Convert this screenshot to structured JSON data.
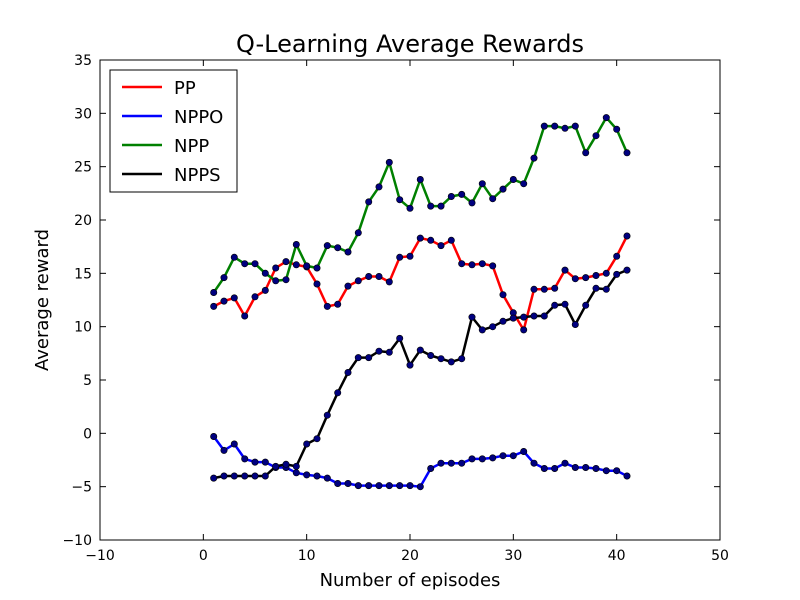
{
  "chart_data": {
    "type": "line",
    "title": "Q-Learning Average Rewards",
    "xlabel": "Number of episodes",
    "ylabel": "Average reward",
    "xlim": [
      -10,
      50
    ],
    "ylim": [
      -10,
      35
    ],
    "xticks": [
      "−10",
      "0",
      "10",
      "20",
      "30",
      "40",
      "50"
    ],
    "yticks": [
      "−10",
      "−5",
      "0",
      "5",
      "10",
      "15",
      "20",
      "25",
      "30",
      "35"
    ],
    "grid": false,
    "legend_position": "top-left",
    "marker_color": "#00007f",
    "x": [
      1,
      2,
      3,
      4,
      5,
      6,
      7,
      8,
      9,
      10,
      11,
      12,
      13,
      14,
      15,
      16,
      17,
      18,
      19,
      20,
      21,
      22,
      23,
      24,
      25,
      26,
      27,
      28,
      29,
      30,
      31,
      32,
      33,
      34,
      35,
      36,
      37,
      38,
      39,
      40,
      41
    ],
    "series": [
      {
        "name": "PP",
        "color": "#ff0000",
        "values": [
          11.9,
          12.4,
          12.7,
          11.0,
          12.8,
          13.4,
          15.5,
          16.1,
          15.8,
          15.6,
          14.0,
          11.9,
          12.1,
          13.8,
          14.3,
          14.7,
          14.7,
          14.2,
          16.5,
          16.6,
          18.3,
          18.1,
          17.6,
          18.1,
          15.9,
          15.8,
          15.9,
          15.7,
          13.0,
          11.3,
          9.7,
          13.5,
          13.5,
          13.6,
          15.3,
          14.5,
          14.6,
          14.8,
          15.0,
          16.6,
          18.5
        ]
      },
      {
        "name": "NPPO",
        "color": "#0000ff",
        "values": [
          -0.3,
          -1.6,
          -1.0,
          -2.4,
          -2.7,
          -2.7,
          -3.2,
          -3.2,
          -3.7,
          -3.9,
          -4.0,
          -4.2,
          -4.7,
          -4.7,
          -4.9,
          -4.9,
          -4.9,
          -4.9,
          -4.9,
          -4.9,
          -5.0,
          -3.3,
          -2.8,
          -2.8,
          -2.8,
          -2.4,
          -2.4,
          -2.3,
          -2.1,
          -2.1,
          -1.7,
          -2.8,
          -3.3,
          -3.3,
          -2.8,
          -3.2,
          -3.2,
          -3.3,
          -3.5,
          -3.5,
          -4.0
        ]
      },
      {
        "name": "NPP",
        "color": "#008000",
        "values": [
          13.2,
          14.6,
          16.5,
          15.9,
          15.9,
          15.0,
          14.3,
          14.4,
          17.7,
          15.7,
          15.5,
          17.6,
          17.4,
          17.0,
          18.8,
          21.7,
          23.1,
          25.4,
          21.9,
          21.1,
          23.8,
          21.3,
          21.3,
          22.2,
          22.4,
          21.6,
          23.4,
          22.0,
          22.9,
          23.8,
          23.4,
          25.8,
          28.8,
          28.8,
          28.6,
          28.8,
          26.3,
          27.9,
          29.6,
          28.5,
          26.3
        ]
      },
      {
        "name": "NPPS",
        "color": "#000000",
        "values": [
          -4.2,
          -4.0,
          -4.0,
          -4.0,
          -4.0,
          -4.0,
          -3.1,
          -2.9,
          -3.1,
          -1.0,
          -0.5,
          1.7,
          3.8,
          5.7,
          7.1,
          7.1,
          7.7,
          7.6,
          8.9,
          6.4,
          7.8,
          7.3,
          7.0,
          6.7,
          7.0,
          10.9,
          9.7,
          10.0,
          10.5,
          10.8,
          10.9,
          11.0,
          11.0,
          12.0,
          12.1,
          10.2,
          12.0,
          13.6,
          13.5,
          14.9,
          15.3
        ]
      }
    ]
  }
}
